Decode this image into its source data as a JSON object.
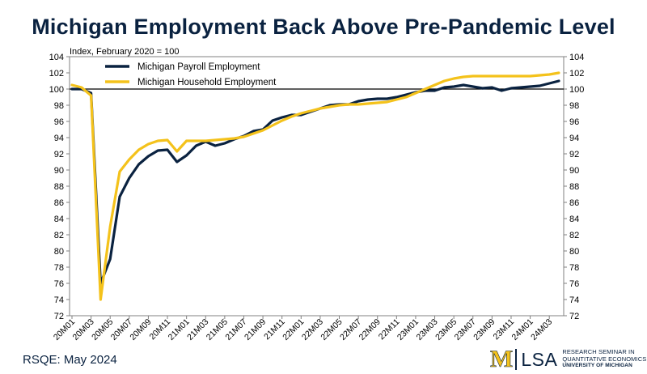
{
  "title": "Michigan Employment Back Above Pre-Pandemic Level",
  "footer": {
    "source": "RSQE: May 2024"
  },
  "logo": {
    "mark": "M",
    "lsa": "LSA",
    "line1": "RESEARCH SEMINAR IN",
    "line2": "QUANTITATIVE ECONOMICS",
    "line3": "UNIVERSITY OF MICHIGAN"
  },
  "colors": {
    "payroll": "#0a2240",
    "household": "#f4c21b",
    "reference": "#000000"
  },
  "chart_data": {
    "type": "line",
    "subtitle": "Index, February 2020 = 100",
    "ylim": [
      72,
      104
    ],
    "yticks": [
      72,
      74,
      76,
      78,
      80,
      82,
      84,
      86,
      88,
      90,
      92,
      94,
      96,
      98,
      100,
      102,
      104
    ],
    "reference_line": 100,
    "x": [
      "20M01",
      "20M02",
      "20M03",
      "20M04",
      "20M05",
      "20M06",
      "20M07",
      "20M08",
      "20M09",
      "20M10",
      "20M11",
      "20M12",
      "21M01",
      "21M02",
      "21M03",
      "21M04",
      "21M05",
      "21M06",
      "21M07",
      "21M08",
      "21M09",
      "21M10",
      "21M11",
      "21M12",
      "22M01",
      "22M02",
      "22M03",
      "22M04",
      "22M05",
      "22M06",
      "22M07",
      "22M08",
      "22M09",
      "22M10",
      "22M11",
      "22M12",
      "23M01",
      "23M02",
      "23M03",
      "23M04",
      "23M05",
      "23M06",
      "23M07",
      "23M08",
      "23M09",
      "23M10",
      "23M11",
      "23M12",
      "24M01",
      "24M02",
      "24M03",
      "24M04"
    ],
    "xtick_labels": [
      "20M01",
      "20M03",
      "20M05",
      "20M07",
      "20M09",
      "20M11",
      "21M01",
      "21M03",
      "21M05",
      "21M07",
      "21M09",
      "21M11",
      "22M01",
      "22M03",
      "22M05",
      "22M07",
      "22M09",
      "22M11",
      "23M01",
      "23M03",
      "23M05",
      "23M07",
      "23M09",
      "23M11",
      "24M01",
      "24M03"
    ],
    "legend_position": "top-left",
    "series": [
      {
        "name": "Michigan Payroll Employment",
        "values": [
          100.0,
          100.0,
          99.5,
          76.0,
          79.0,
          86.7,
          89.0,
          90.7,
          91.7,
          92.4,
          92.5,
          91.0,
          91.8,
          93.0,
          93.5,
          93.0,
          93.3,
          93.8,
          94.2,
          94.8,
          95.0,
          96.1,
          96.5,
          96.8,
          96.8,
          97.2,
          97.6,
          98.0,
          98.1,
          98.1,
          98.5,
          98.7,
          98.8,
          98.8,
          99.0,
          99.3,
          99.6,
          99.8,
          99.8,
          100.2,
          100.3,
          100.5,
          100.3,
          100.1,
          100.2,
          99.8,
          100.1,
          100.2,
          100.3,
          100.4,
          100.7,
          101.0
        ]
      },
      {
        "name": "Michigan Household Employment",
        "values": [
          100.5,
          100.2,
          99.2,
          74.0,
          83.0,
          89.8,
          91.3,
          92.5,
          93.2,
          93.6,
          93.7,
          92.3,
          93.6,
          93.6,
          93.6,
          93.7,
          93.8,
          93.9,
          94.1,
          94.5,
          94.9,
          95.5,
          96.1,
          96.6,
          97.0,
          97.3,
          97.6,
          97.8,
          98.0,
          98.1,
          98.1,
          98.2,
          98.3,
          98.4,
          98.7,
          99.0,
          99.5,
          100.0,
          100.5,
          101.0,
          101.3,
          101.5,
          101.6,
          101.6,
          101.6,
          101.6,
          101.6,
          101.6,
          101.6,
          101.7,
          101.8,
          102.0
        ]
      }
    ]
  }
}
